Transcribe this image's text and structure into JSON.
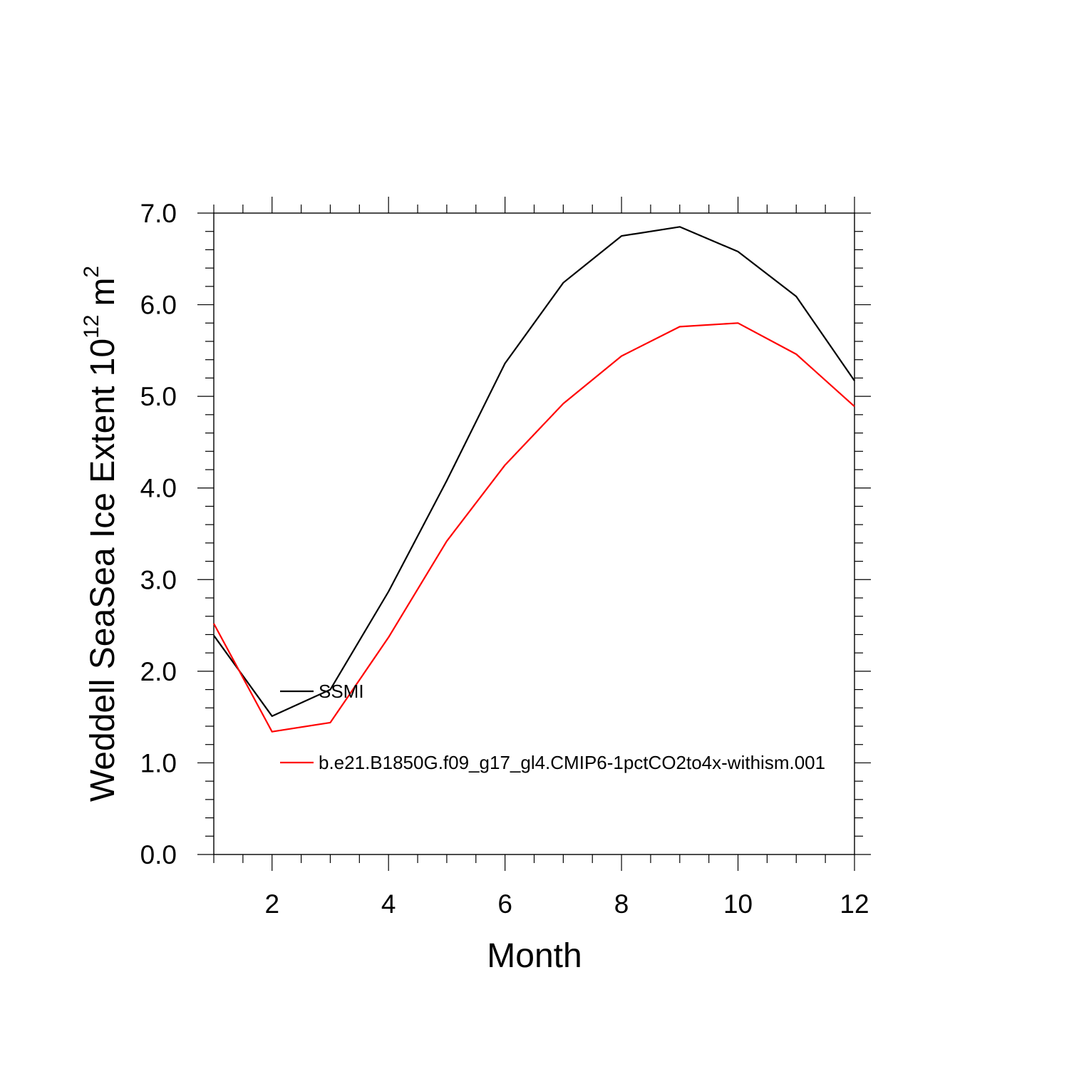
{
  "chart_data": {
    "type": "line",
    "title": "",
    "xlabel": "Month",
    "ylabel_main": "Weddell SeaSea Ice Extent 10",
    "ylabel_exp": "12",
    "ylabel_unit": "m",
    "ylabel_unit_exp": "2",
    "xlim": [
      1,
      12
    ],
    "ylim": [
      0,
      7
    ],
    "x_ticks": [
      "2",
      "4",
      "6",
      "8",
      "10",
      "12"
    ],
    "y_ticks": [
      "0.0",
      "1.0",
      "2.0",
      "3.0",
      "4.0",
      "5.0",
      "6.0",
      "7.0"
    ],
    "x": [
      1,
      2,
      3,
      4,
      5,
      6,
      7,
      8,
      9,
      10,
      11,
      12
    ],
    "series": [
      {
        "name": "SSMI",
        "color": "#000000",
        "values": [
          2.39,
          1.51,
          1.8,
          2.87,
          4.08,
          5.36,
          6.24,
          6.75,
          6.85,
          6.58,
          6.09,
          5.17
        ]
      },
      {
        "name": "b.e21.B1850G.f09_g17_gl4.CMIP6-1pctCO2to4x-withism.001",
        "color": "#ff0000",
        "values": [
          2.52,
          1.34,
          1.44,
          2.37,
          3.42,
          4.25,
          4.92,
          5.44,
          5.76,
          5.8,
          5.46,
          4.89
        ]
      }
    ],
    "grid": false,
    "legend_position": "inside-lower-left"
  }
}
